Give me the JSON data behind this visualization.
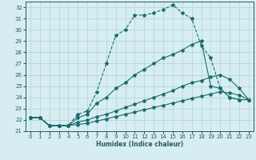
{
  "xlabel": "Humidex (Indice chaleur)",
  "background_color": "#d6eef2",
  "grid_color": "#b0d0d8",
  "line_color": "#1a6b6b",
  "series": [
    {
      "x": [
        0,
        1,
        2,
        3,
        4,
        5,
        6,
        7,
        8,
        9,
        10,
        11,
        12,
        13,
        14,
        15,
        16,
        17,
        18,
        19,
        20,
        21,
        22,
        23
      ],
      "y": [
        22.2,
        22.2,
        21.5,
        21.5,
        21.5,
        22.5,
        22.8,
        24.5,
        27.0,
        29.5,
        30.0,
        31.3,
        31.3,
        31.5,
        31.8,
        32.2,
        31.5,
        31.0,
        28.6,
        27.5,
        24.8,
        24.0,
        23.8,
        23.8
      ],
      "linestyle": "--"
    },
    {
      "x": [
        0,
        1,
        2,
        3,
        4,
        5,
        6,
        7,
        8,
        9,
        10,
        11,
        12,
        13,
        14,
        15,
        16,
        17,
        18,
        19,
        20,
        21,
        22,
        23
      ],
      "y": [
        22.2,
        22.2,
        21.5,
        21.5,
        21.5,
        22.2,
        22.5,
        23.5,
        24.0,
        24.8,
        25.3,
        26.0,
        26.5,
        27.0,
        27.5,
        27.8,
        28.2,
        28.7,
        29.0,
        25.0,
        24.8,
        24.0,
        23.8,
        23.8
      ],
      "linestyle": "-"
    },
    {
      "x": [
        0,
        1,
        2,
        3,
        4,
        5,
        6,
        7,
        8,
        9,
        10,
        11,
        12,
        13,
        14,
        15,
        16,
        17,
        18,
        19,
        20,
        21,
        22,
        23
      ],
      "y": [
        22.2,
        22.2,
        21.5,
        21.5,
        21.5,
        21.8,
        22.0,
        22.3,
        22.5,
        22.8,
        23.1,
        23.4,
        23.7,
        24.0,
        24.3,
        24.6,
        25.0,
        25.3,
        25.5,
        25.8,
        26.0,
        25.6,
        24.8,
        23.8
      ],
      "linestyle": "-"
    },
    {
      "x": [
        0,
        1,
        2,
        3,
        4,
        5,
        6,
        7,
        8,
        9,
        10,
        11,
        12,
        13,
        14,
        15,
        16,
        17,
        18,
        19,
        20,
        21,
        22,
        23
      ],
      "y": [
        22.2,
        22.2,
        21.5,
        21.5,
        21.5,
        21.6,
        21.7,
        21.9,
        22.1,
        22.3,
        22.5,
        22.7,
        22.9,
        23.1,
        23.3,
        23.5,
        23.7,
        23.9,
        24.1,
        24.3,
        24.5,
        24.4,
        24.2,
        23.8
      ],
      "linestyle": "-"
    }
  ],
  "xlim": [
    -0.5,
    23.5
  ],
  "ylim": [
    21.0,
    32.5
  ],
  "xticks": [
    0,
    1,
    2,
    3,
    4,
    5,
    6,
    7,
    8,
    9,
    10,
    11,
    12,
    13,
    14,
    15,
    16,
    17,
    18,
    19,
    20,
    21,
    22,
    23
  ],
  "yticks": [
    21,
    22,
    23,
    24,
    25,
    26,
    27,
    28,
    29,
    30,
    31,
    32
  ],
  "marker": "*",
  "markersize": 3,
  "linewidth": 0.8,
  "label_fontsize": 5.5,
  "tick_fontsize": 5.0
}
